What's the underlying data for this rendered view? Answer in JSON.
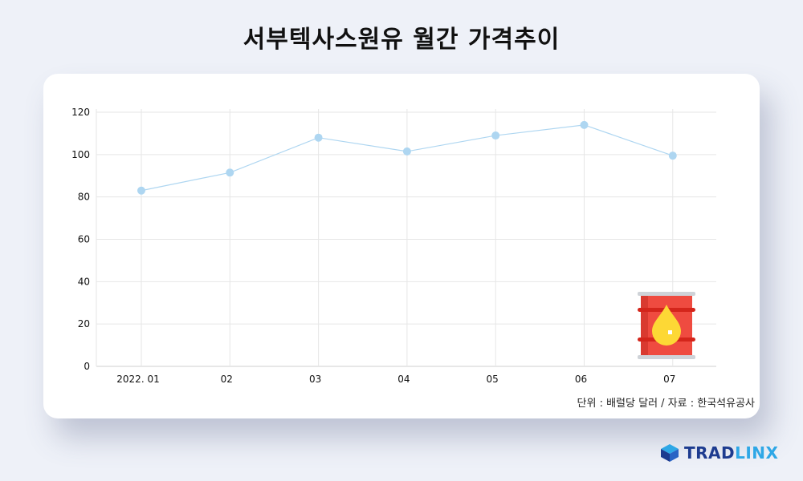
{
  "title": "서부텍사스원유 월간 가격추이",
  "source_note": "단위 : 배럴당 달러 / 자료 : 한국석유공사",
  "brand": {
    "name_part1": "TRAD",
    "name_part2": "LINX"
  },
  "icons": {
    "barrel": "oil-barrel-icon",
    "logo": "tradlinx-cube-icon"
  },
  "colors": {
    "series": "#aed6f1",
    "point": "#aed6f1",
    "grid": "#e6e6e6",
    "barrel": "#e94b3c",
    "drop": "#fdd835"
  },
  "chart_data": {
    "type": "line",
    "categories": [
      "2022. 01",
      "02",
      "03",
      "04",
      "05",
      "06",
      "07"
    ],
    "values": [
      83,
      91.5,
      108,
      101.5,
      109,
      114,
      99.5
    ],
    "ylim": [
      0,
      120
    ],
    "yticks": [
      0,
      20,
      40,
      60,
      80,
      100,
      120
    ],
    "grid": true
  }
}
